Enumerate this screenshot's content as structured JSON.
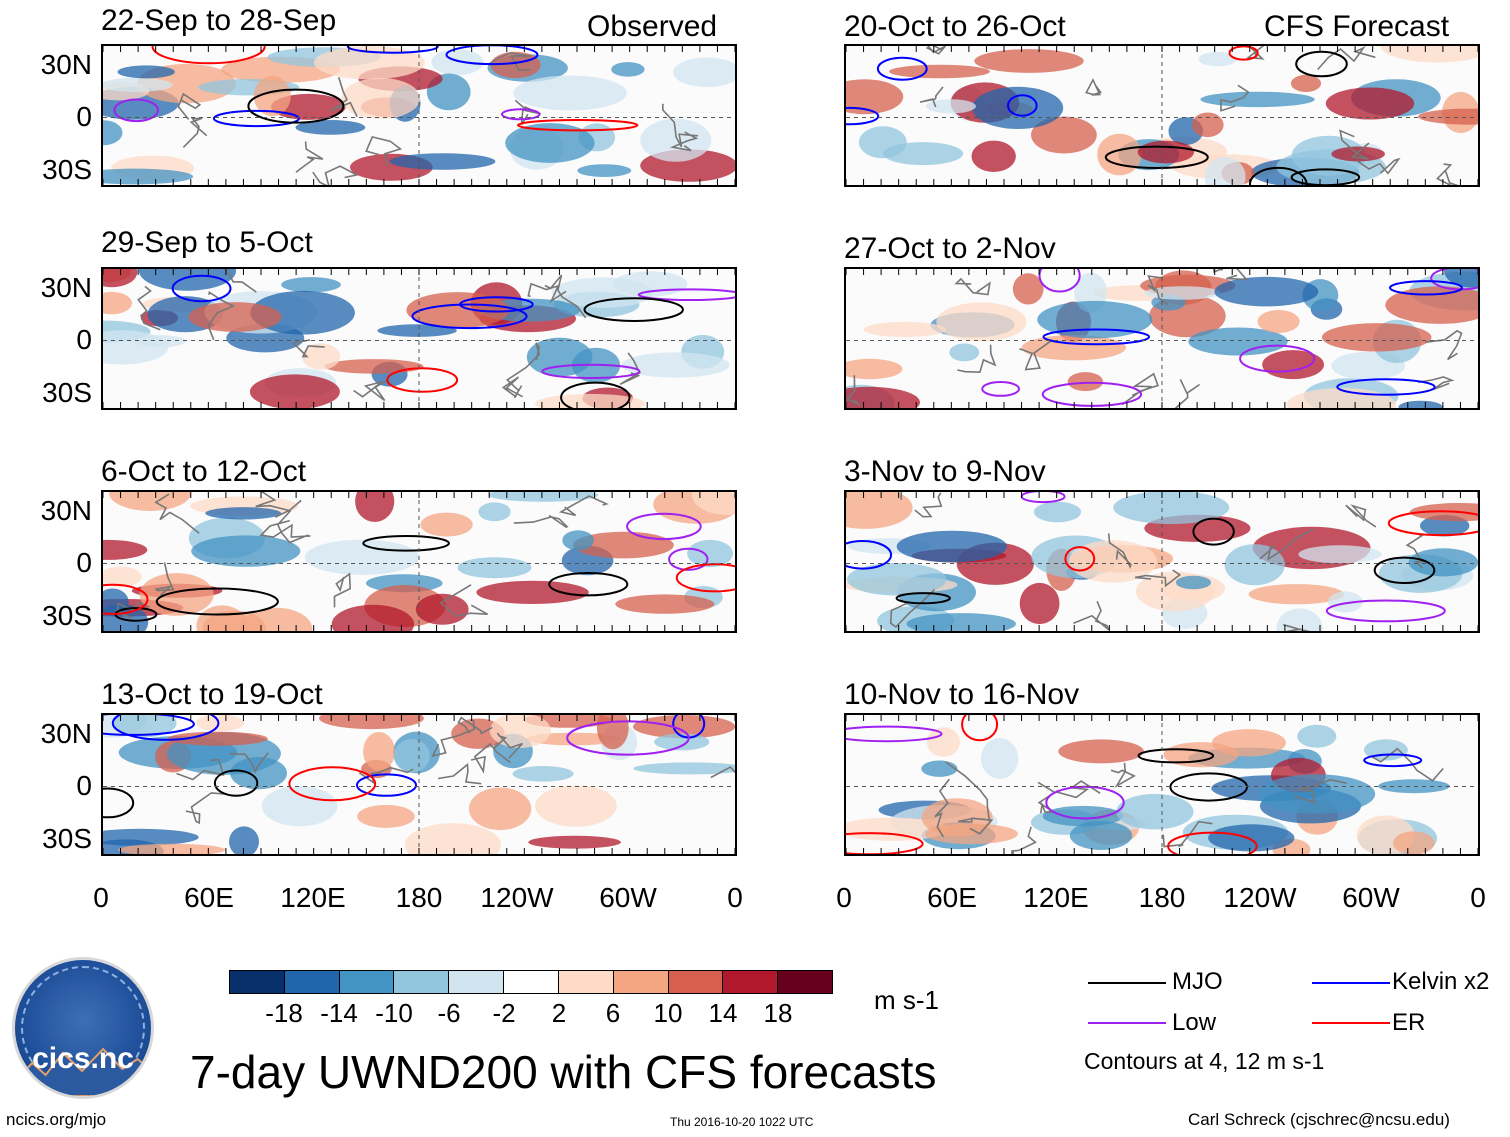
{
  "panels": {
    "observed": [
      {
        "title": "22-Sep to 28-Sep",
        "label": "Observed"
      },
      {
        "title": "29-Sep to 5-Oct",
        "label": ""
      },
      {
        "title": "6-Oct to 12-Oct",
        "label": ""
      },
      {
        "title": "13-Oct to 19-Oct",
        "label": ""
      }
    ],
    "forecast": [
      {
        "title": "20-Oct to 26-Oct",
        "label": "CFS Forecast"
      },
      {
        "title": "27-Oct to 2-Nov",
        "label": ""
      },
      {
        "title": "3-Nov to 9-Nov",
        "label": ""
      },
      {
        "title": "10-Nov to 16-Nov",
        "label": ""
      }
    ]
  },
  "lat_labels": [
    "30N",
    "0",
    "30S"
  ],
  "lon_labels": [
    "0",
    "60E",
    "120E",
    "180",
    "120W",
    "60W",
    "0"
  ],
  "colorbar": {
    "colors": [
      "#08306b",
      "#2166ac",
      "#4393c3",
      "#92c5de",
      "#d1e5f0",
      "#ffffff",
      "#fddbc7",
      "#f4a582",
      "#d6604d",
      "#b2182b",
      "#67001f"
    ],
    "ticks": [
      "-18",
      "-14",
      "-10",
      "-6",
      "-2",
      "2",
      "6",
      "10",
      "14",
      "18"
    ],
    "units": "m s-1"
  },
  "title": "7-day UWND200 with CFS forecasts",
  "legend": {
    "items": [
      {
        "name": "MJO",
        "color": "#000000"
      },
      {
        "name": "Kelvin x2",
        "color": "#0000ff"
      },
      {
        "name": "Low",
        "color": "#a020f0"
      },
      {
        "name": "ER",
        "color": "#ff0000"
      }
    ],
    "note": "Contours at 4, 12 m s-1"
  },
  "logo": {
    "text": "cics.nc",
    "arc_text": "Cooperative Institute for Climate and Satellites"
  },
  "footer": {
    "left": "ncics.org/mjo",
    "center": "Thu 2016-10-20 1022 UTC",
    "right": "Carl Schreck (cjschrec@ncsu.edu)"
  }
}
